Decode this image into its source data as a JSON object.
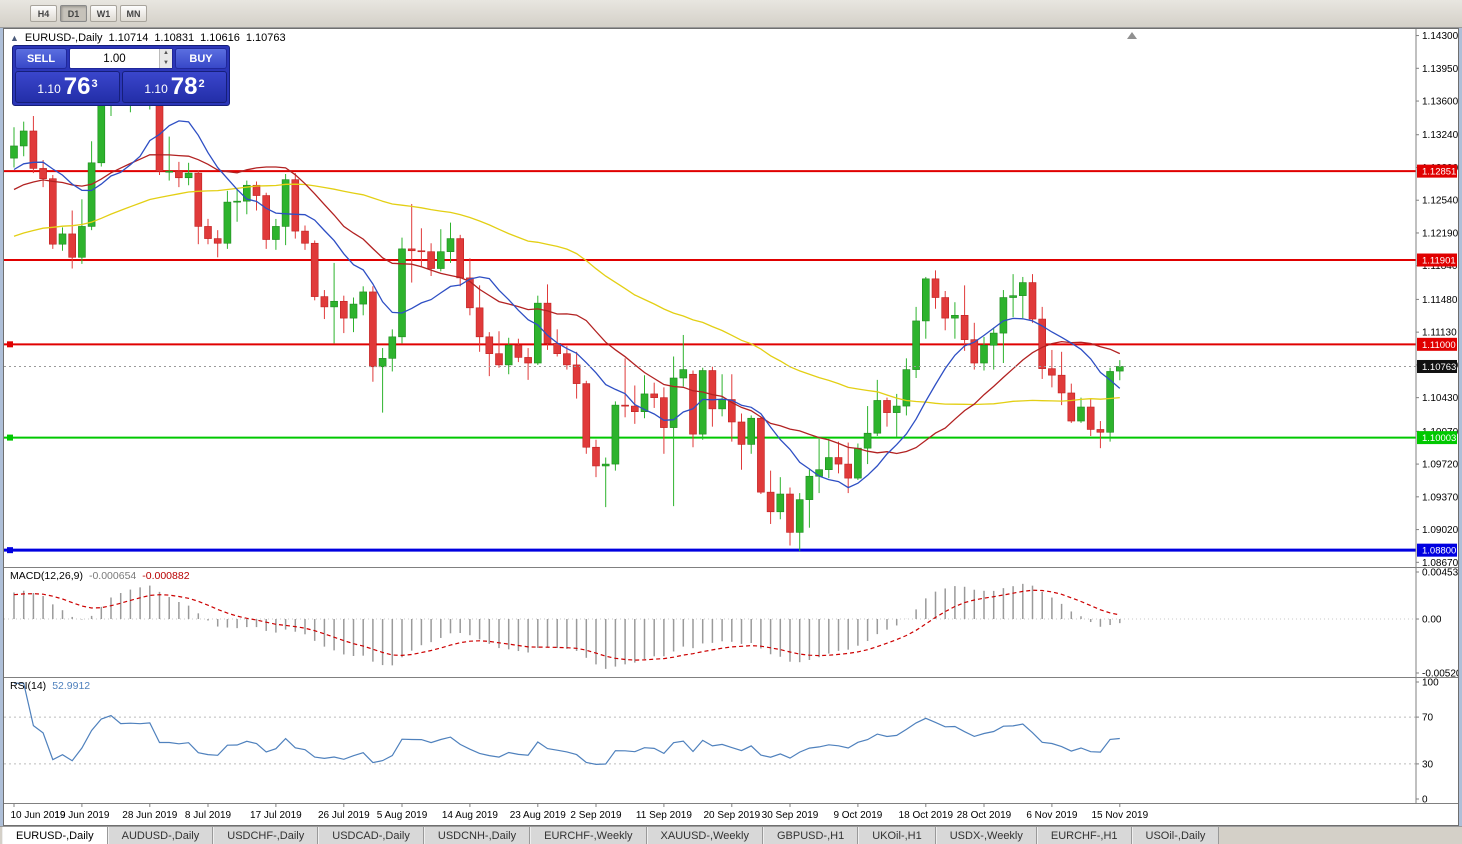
{
  "window": {
    "toolbar": {
      "timeframes": [
        "H4",
        "D1",
        "W1",
        "MN"
      ],
      "active": "D1"
    }
  },
  "chart": {
    "symbol_title": "EURUSD-,Daily",
    "ohlc": {
      "open": "1.10714",
      "high": "1.10831",
      "low": "1.10616",
      "close": "1.10763"
    },
    "current_price_label": "1.10763",
    "price_axis_labels": [
      "1.14300",
      "1.13950",
      "1.13600",
      "1.13240",
      "1.12890",
      "1.12540",
      "1.12190",
      "1.11840",
      "1.11480",
      "1.11130",
      "1.10780",
      "1.10430",
      "1.10070",
      "1.09720",
      "1.09370",
      "1.09020",
      "1.08670"
    ],
    "trade_panel": {
      "sell_label": "SELL",
      "buy_label": "BUY",
      "volume": "1.00",
      "sell_price": {
        "prefix": "1.10",
        "big": "76",
        "sup": "3"
      },
      "buy_price": {
        "prefix": "1.10",
        "big": "78",
        "sup": "2"
      }
    }
  },
  "macd": {
    "label": "MACD(12,26,9)",
    "value_main": "-0.000654",
    "value_signal": "-0.000882",
    "params": [
      12,
      26,
      9
    ],
    "axis": [
      "0.0045336",
      "0.00",
      "-0.0052050"
    ]
  },
  "rsi": {
    "label": "RSI(14)",
    "value": "52.9912",
    "period": 14,
    "levels": [
      70,
      30
    ],
    "axis": [
      "100",
      "70",
      "30",
      "0"
    ]
  },
  "tabs": [
    {
      "label": "EURUSD-,Daily",
      "active": true
    },
    {
      "label": "AUDUSD-,Daily",
      "active": false
    },
    {
      "label": "USDCHF-,Daily",
      "active": false
    },
    {
      "label": "USDCAD-,Daily",
      "active": false
    },
    {
      "label": "USDCNH-,Daily",
      "active": false
    },
    {
      "label": "EURCHF-,Weekly",
      "active": false
    },
    {
      "label": "XAUUSD-,Weekly",
      "active": false
    },
    {
      "label": "GBPUSD-,H1",
      "active": false
    },
    {
      "label": "UKOil-,H1",
      "active": false
    },
    {
      "label": "USDX-,Weekly",
      "active": false
    },
    {
      "label": "EURCHF-,H1",
      "active": false
    },
    {
      "label": "USOil-,Daily",
      "active": false
    }
  ],
  "chart_data": {
    "type": "candlestick",
    "symbol": "EURUSD-",
    "timeframe": "Daily",
    "price_range": {
      "max": 1.1437,
      "min": 1.0862
    },
    "current_price": 1.10763,
    "ma": [
      {
        "period": 10,
        "color": "#2e4fc4"
      },
      {
        "period": 20,
        "color": "#b22222"
      },
      {
        "period": 50,
        "color": "#e3cf14"
      }
    ],
    "macd_range": {
      "max": 0.0045336,
      "min": -0.005205
    },
    "hlines": [
      {
        "price": 1.12851,
        "label": "1.12851",
        "color": "#e00000",
        "width": 2,
        "handle": false
      },
      {
        "price": 1.11901,
        "label": "1.11901",
        "color": "#e00000",
        "width": 2,
        "handle": false
      },
      {
        "price": 1.11,
        "label": "1.11000",
        "color": "#e00000",
        "width": 2,
        "handle": true
      },
      {
        "price": 1.10003,
        "label": "1.10003",
        "color": "#00c800",
        "width": 2,
        "handle": true
      },
      {
        "price": 1.088,
        "label": "1.08800",
        "color": "#0000e0",
        "width": 3,
        "handle": true
      }
    ],
    "colors": {
      "bull": "#2db32d",
      "bull_border": "#1d8a1d",
      "bear": "#e03a3a",
      "bear_border": "#bf2020",
      "macd_hist": "#9a9a9a",
      "macd_signal": "#cc0000",
      "rsi_line": "#4f81bd",
      "current_tag": "#111111"
    },
    "date_labels": [
      {
        "i": 0,
        "t": "10 Jun 2019"
      },
      {
        "i": 7,
        "t": "19 Jun 2019"
      },
      {
        "i": 14,
        "t": "28 Jun 2019"
      },
      {
        "i": 20,
        "t": "8 Jul 2019"
      },
      {
        "i": 27,
        "t": "17 Jul 2019"
      },
      {
        "i": 34,
        "t": "26 Jul 2019"
      },
      {
        "i": 40,
        "t": "5 Aug 2019"
      },
      {
        "i": 47,
        "t": "14 Aug 2019"
      },
      {
        "i": 54,
        "t": "23 Aug 2019"
      },
      {
        "i": 60,
        "t": "2 Sep 2019"
      },
      {
        "i": 67,
        "t": "11 Sep 2019"
      },
      {
        "i": 74,
        "t": "20 Sep 2019"
      },
      {
        "i": 80,
        "t": "30 Sep 2019"
      },
      {
        "i": 87,
        "t": "9 Oct 2019"
      },
      {
        "i": 94,
        "t": "18 Oct 2019"
      },
      {
        "i": 100,
        "t": "28 Oct 2019"
      },
      {
        "i": 107,
        "t": "6 Nov 2019"
      },
      {
        "i": 114,
        "t": "15 Nov 2019"
      }
    ],
    "candles": [
      [
        1.1299,
        1.1332,
        1.1289,
        1.1312
      ],
      [
        1.1312,
        1.1338,
        1.1301,
        1.1328
      ],
      [
        1.1328,
        1.1344,
        1.1283,
        1.1288
      ],
      [
        1.1288,
        1.1297,
        1.1268,
        1.1277
      ],
      [
        1.1277,
        1.1281,
        1.1202,
        1.1207
      ],
      [
        1.1207,
        1.1225,
        1.12,
        1.1218
      ],
      [
        1.1218,
        1.1243,
        1.1181,
        1.1193
      ],
      [
        1.1193,
        1.1255,
        1.1186,
        1.1226
      ],
      [
        1.1226,
        1.1317,
        1.1222,
        1.1294
      ],
      [
        1.1294,
        1.1378,
        1.129,
        1.1369
      ],
      [
        1.1369,
        1.1412,
        1.1344,
        1.1399
      ],
      [
        1.1399,
        1.1403,
        1.1358,
        1.1367
      ],
      [
        1.1367,
        1.138,
        1.1348,
        1.137
      ],
      [
        1.137,
        1.1377,
        1.1357,
        1.1368
      ],
      [
        1.1368,
        1.1391,
        1.1351,
        1.1373
      ],
      [
        1.1373,
        1.1375,
        1.1281,
        1.1285
      ],
      [
        1.1285,
        1.1322,
        1.1275,
        1.1285
      ],
      [
        1.1285,
        1.1295,
        1.1268,
        1.1278
      ],
      [
        1.1278,
        1.1294,
        1.127,
        1.1283
      ],
      [
        1.1283,
        1.1286,
        1.1207,
        1.1226
      ],
      [
        1.1226,
        1.1234,
        1.1207,
        1.1213
      ],
      [
        1.1213,
        1.1222,
        1.1193,
        1.1208
      ],
      [
        1.1208,
        1.1264,
        1.1202,
        1.1252
      ],
      [
        1.1252,
        1.1267,
        1.1231,
        1.1253
      ],
      [
        1.1253,
        1.1275,
        1.1239,
        1.127
      ],
      [
        1.127,
        1.1274,
        1.1243,
        1.1259
      ],
      [
        1.1259,
        1.1262,
        1.1202,
        1.1212
      ],
      [
        1.1212,
        1.1234,
        1.1201,
        1.1226
      ],
      [
        1.1226,
        1.1282,
        1.1206,
        1.1276
      ],
      [
        1.1276,
        1.1283,
        1.1213,
        1.1221
      ],
      [
        1.1221,
        1.1227,
        1.1201,
        1.1208
      ],
      [
        1.1208,
        1.1211,
        1.1147,
        1.1151
      ],
      [
        1.1151,
        1.1158,
        1.1127,
        1.114
      ],
      [
        1.114,
        1.1187,
        1.1101,
        1.1146
      ],
      [
        1.1146,
        1.1152,
        1.1112,
        1.1128
      ],
      [
        1.1128,
        1.115,
        1.1113,
        1.1143
      ],
      [
        1.1143,
        1.1162,
        1.1131,
        1.1156
      ],
      [
        1.1156,
        1.1162,
        1.106,
        1.1076
      ],
      [
        1.1076,
        1.1096,
        1.1027,
        1.1085
      ],
      [
        1.1085,
        1.1116,
        1.1071,
        1.1108
      ],
      [
        1.1108,
        1.1214,
        1.1101,
        1.1202
      ],
      [
        1.1202,
        1.125,
        1.1166,
        1.12
      ],
      [
        1.12,
        1.1224,
        1.1183,
        1.1199
      ],
      [
        1.1199,
        1.1208,
        1.1173,
        1.1181
      ],
      [
        1.1181,
        1.1223,
        1.1178,
        1.1199
      ],
      [
        1.1199,
        1.123,
        1.1187,
        1.1213
      ],
      [
        1.1213,
        1.1217,
        1.1162,
        1.1171
      ],
      [
        1.1171,
        1.1192,
        1.1131,
        1.1139
      ],
      [
        1.1139,
        1.1163,
        1.1092,
        1.1108
      ],
      [
        1.1108,
        1.1113,
        1.1066,
        1.109
      ],
      [
        1.109,
        1.1114,
        1.1075,
        1.1078
      ],
      [
        1.1078,
        1.1107,
        1.1068,
        1.1099
      ],
      [
        1.1099,
        1.1106,
        1.1081,
        1.1086
      ],
      [
        1.1086,
        1.1096,
        1.1062,
        1.108
      ],
      [
        1.108,
        1.1152,
        1.1078,
        1.1144
      ],
      [
        1.1144,
        1.1164,
        1.1094,
        1.1101
      ],
      [
        1.1101,
        1.1116,
        1.1087,
        1.109
      ],
      [
        1.109,
        1.1098,
        1.1073,
        1.1078
      ],
      [
        1.1078,
        1.1092,
        1.1042,
        1.1058
      ],
      [
        1.1058,
        1.1061,
        1.0983,
        1.099
      ],
      [
        1.099,
        1.0998,
        1.0958,
        1.097
      ],
      [
        1.097,
        1.0979,
        1.0926,
        1.0972
      ],
      [
        1.0972,
        1.1039,
        1.0965,
        1.1035
      ],
      [
        1.1035,
        1.1085,
        1.1022,
        1.1034
      ],
      [
        1.1034,
        1.1056,
        1.1015,
        1.1028
      ],
      [
        1.1028,
        1.1067,
        1.1021,
        1.1047
      ],
      [
        1.1047,
        1.1059,
        1.1032,
        1.1043
      ],
      [
        1.1043,
        1.1054,
        1.0983,
        1.1011
      ],
      [
        1.1011,
        1.1087,
        1.0927,
        1.1064
      ],
      [
        1.1064,
        1.111,
        1.1055,
        1.1073
      ],
      [
        1.1068,
        1.1072,
        1.099,
        1.1004
      ],
      [
        1.1004,
        1.1075,
        1.0998,
        1.1072
      ],
      [
        1.1072,
        1.1076,
        1.1012,
        1.1031
      ],
      [
        1.1031,
        1.1068,
        1.1023,
        1.1041
      ],
      [
        1.1041,
        1.1068,
        1.0996,
        1.1017
      ],
      [
        1.1017,
        1.1026,
        1.0966,
        1.0993
      ],
      [
        1.0993,
        1.1024,
        1.0983,
        1.1021
      ],
      [
        1.1021,
        1.1023,
        1.094,
        1.0942
      ],
      [
        1.0942,
        1.0965,
        1.0908,
        1.0921
      ],
      [
        1.0921,
        1.0958,
        1.0913,
        1.094
      ],
      [
        1.094,
        1.0947,
        1.0885,
        1.0899
      ],
      [
        1.0899,
        1.0941,
        1.0879,
        1.0934
      ],
      [
        1.0934,
        1.0966,
        1.0904,
        1.0959
      ],
      [
        1.0959,
        1.0999,
        1.0941,
        1.0966
      ],
      [
        1.0966,
        1.0999,
        1.0957,
        1.0979
      ],
      [
        1.0979,
        1.0996,
        1.0962,
        1.0972
      ],
      [
        1.0972,
        1.0995,
        1.0941,
        1.0957
      ],
      [
        1.0957,
        1.0994,
        1.0955,
        1.0989
      ],
      [
        1.0989,
        1.1034,
        1.0972,
        1.1005
      ],
      [
        1.1005,
        1.1062,
        1.1002,
        1.104
      ],
      [
        1.104,
        1.1043,
        1.1012,
        1.1027
      ],
      [
        1.1027,
        1.1047,
        1.1001,
        1.1034
      ],
      [
        1.1034,
        1.1085,
        1.1024,
        1.1073
      ],
      [
        1.1073,
        1.114,
        1.1064,
        1.1125
      ],
      [
        1.1125,
        1.1172,
        1.1106,
        1.117
      ],
      [
        1.117,
        1.1179,
        1.1138,
        1.115
      ],
      [
        1.115,
        1.1157,
        1.1115,
        1.1128
      ],
      [
        1.1128,
        1.1145,
        1.1106,
        1.1131
      ],
      [
        1.1131,
        1.1163,
        1.1093,
        1.1105
      ],
      [
        1.1105,
        1.1123,
        1.1073,
        1.108
      ],
      [
        1.108,
        1.1108,
        1.1072,
        1.1099
      ],
      [
        1.1099,
        1.1118,
        1.1073,
        1.1112
      ],
      [
        1.1112,
        1.1158,
        1.108,
        1.115
      ],
      [
        1.115,
        1.1175,
        1.1129,
        1.1152
      ],
      [
        1.1152,
        1.1172,
        1.1128,
        1.1166
      ],
      [
        1.1166,
        1.1175,
        1.1123,
        1.1127
      ],
      [
        1.1127,
        1.114,
        1.1063,
        1.1074
      ],
      [
        1.1074,
        1.1094,
        1.1054,
        1.1067
      ],
      [
        1.1067,
        1.1092,
        1.1035,
        1.1048
      ],
      [
        1.1048,
        1.1058,
        1.1016,
        1.1018
      ],
      [
        1.1018,
        1.1043,
        1.1016,
        1.1033
      ],
      [
        1.1033,
        1.1042,
        1.1002,
        1.1009
      ],
      [
        1.1009,
        1.1018,
        1.0989,
        1.1006
      ],
      [
        1.1006,
        1.1075,
        1.0996,
        1.1071
      ],
      [
        1.10714,
        1.10831,
        1.10616,
        1.10763
      ]
    ]
  }
}
